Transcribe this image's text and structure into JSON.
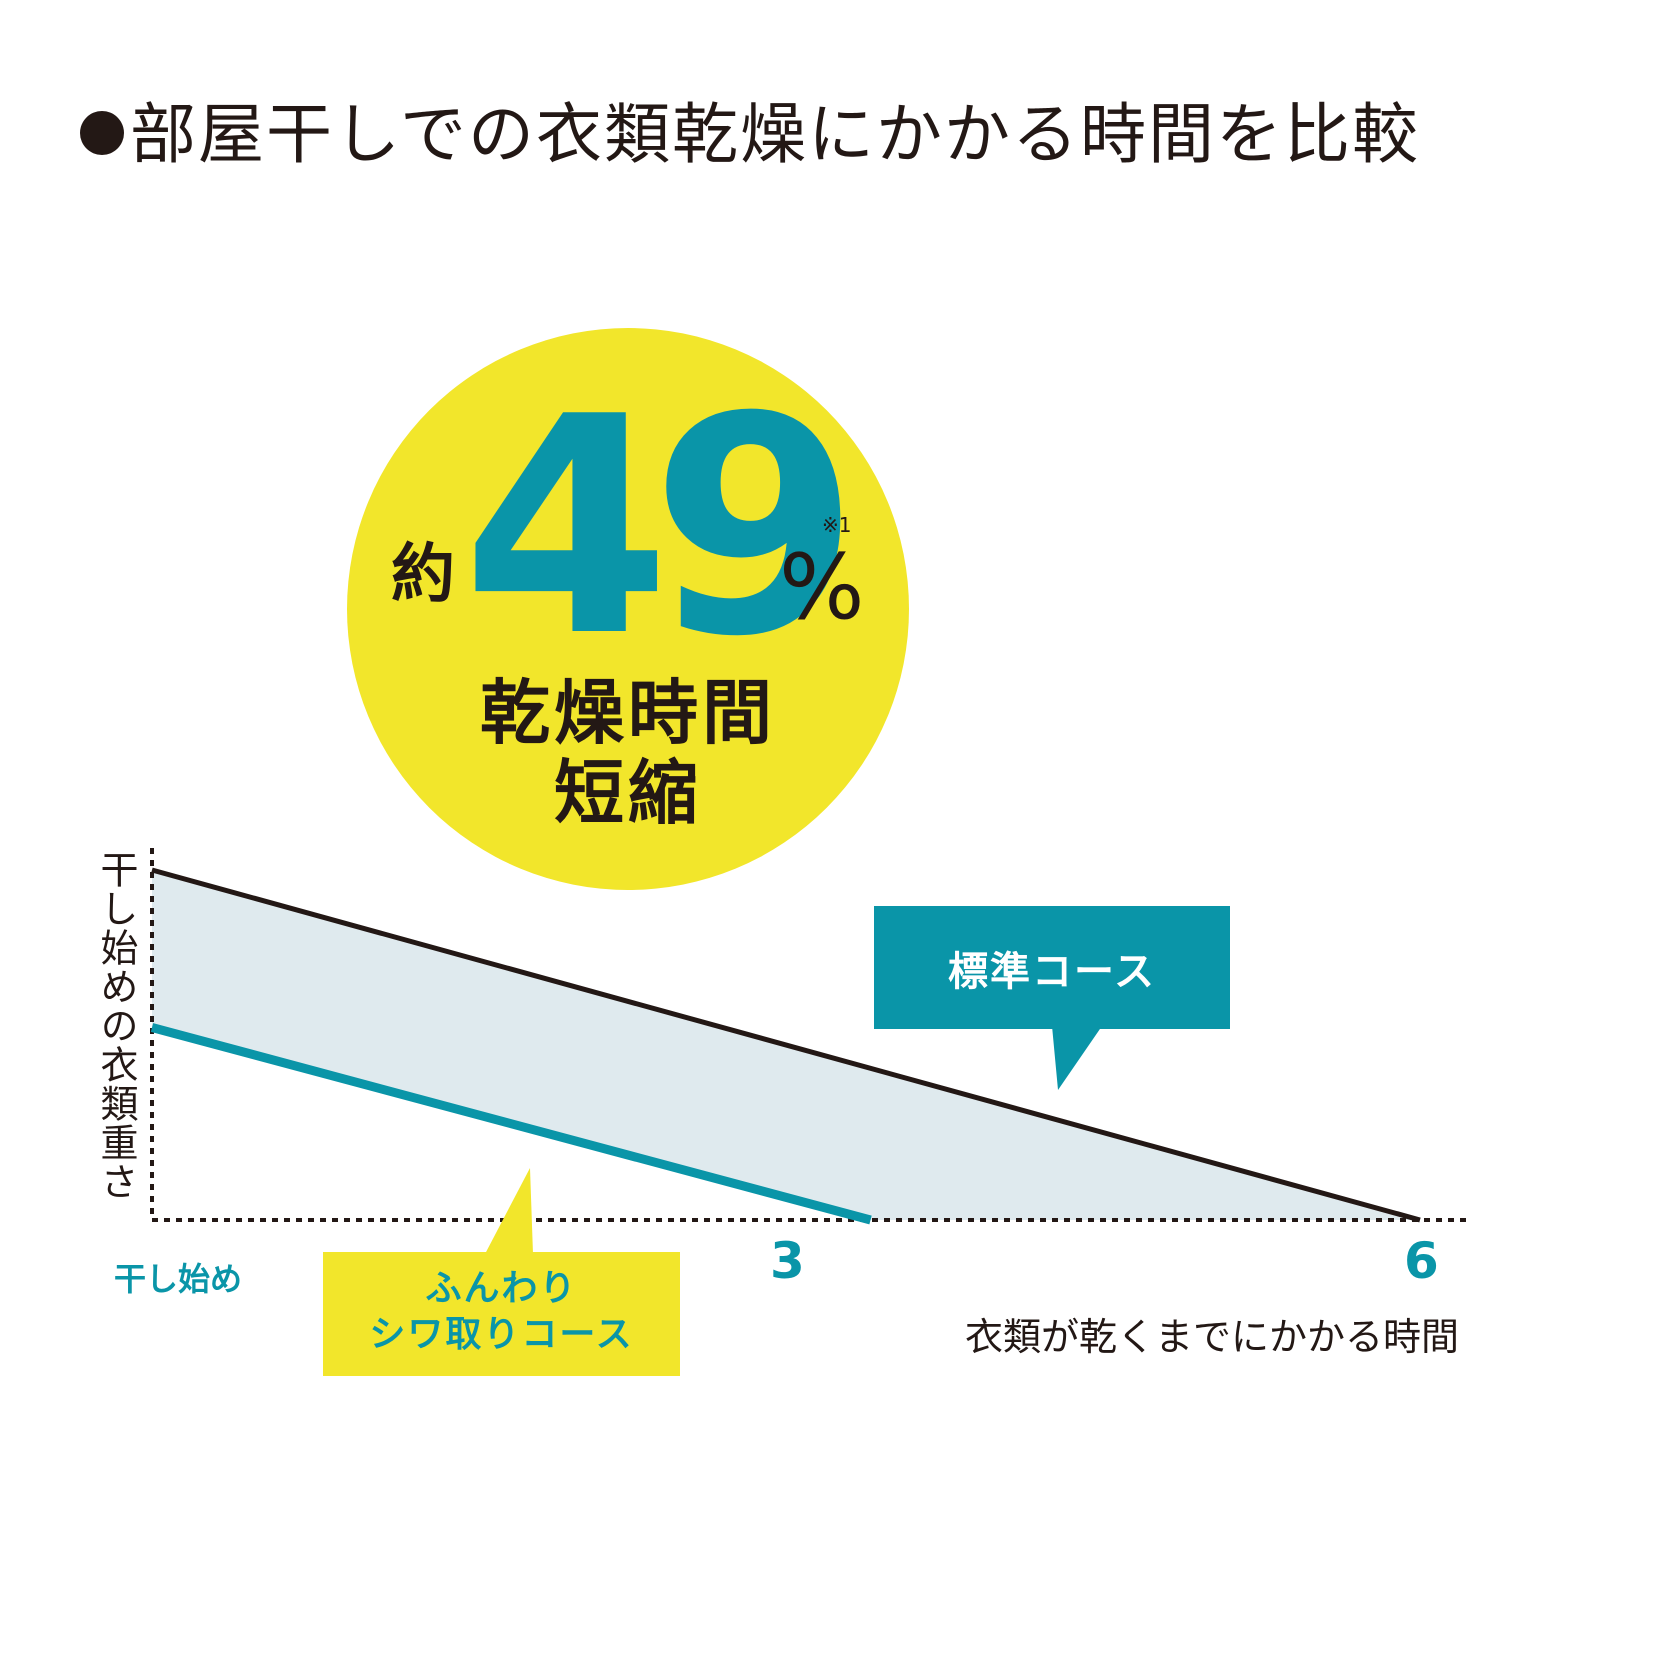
{
  "title": "部屋干しでの衣類乾燥にかかる時間を比較",
  "badge": {
    "approx": "約",
    "number": "49",
    "percent": "%",
    "note": "※1",
    "line1": "乾燥時間",
    "line2": "短縮"
  },
  "colors": {
    "accent": "#0a95a8",
    "highlight": "#f2e62b",
    "area": "#dfeaee",
    "ink": "#231815"
  },
  "chart_data": {
    "type": "line",
    "title": "部屋干しでの衣類乾燥にかかる時間を比較",
    "xlabel": "衣類が乾くまでにかかる時間",
    "ylabel": "干し始めの衣類重さ",
    "start_label": "干し始め",
    "x_ticks": [
      "3",
      "6"
    ],
    "xlim": [
      0,
      6.4
    ],
    "grid": false,
    "series": [
      {
        "name": "標準コース",
        "color": "#231815",
        "points": [
          [
            0,
            1.0
          ],
          [
            6,
            0.0
          ]
        ]
      },
      {
        "name": "ふんわり シワ取りコース",
        "color": "#0a95a8",
        "points": [
          [
            0,
            0.55
          ],
          [
            3.4,
            0.0
          ]
        ]
      }
    ],
    "annotations": {
      "standard": "標準コース",
      "soft_line1": "ふんわり",
      "soft_line2": "シワ取りコース"
    }
  }
}
